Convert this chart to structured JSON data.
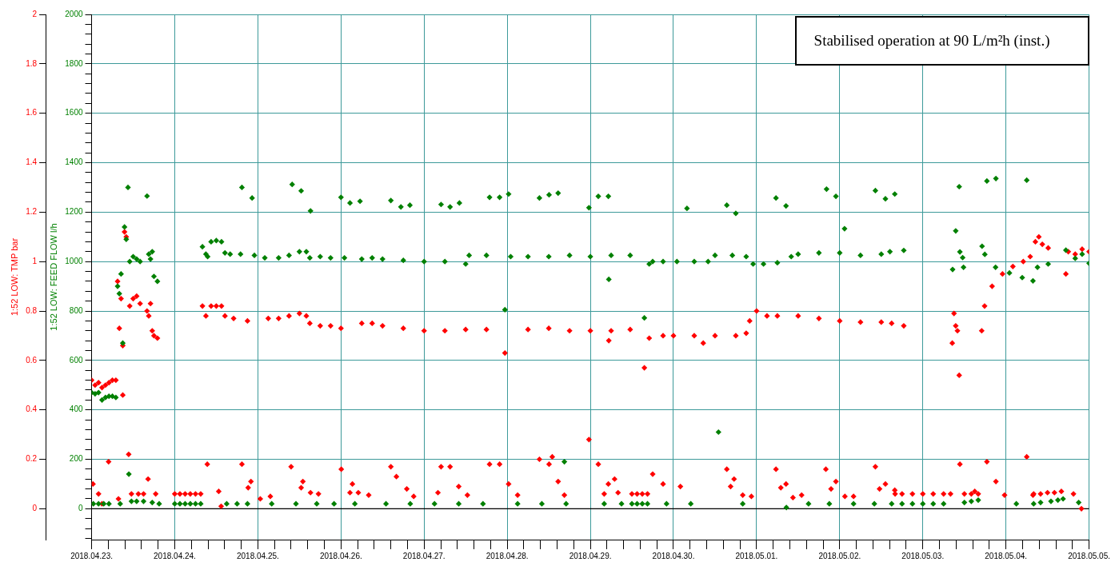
{
  "chart_data": {
    "type": "scatter",
    "ylabel": "1:52 LOW: FEED FLOW l/h",
    "y2label": "1:52 LOW: TMP bar",
    "annotations": [
      "Stabilised operation at 90 L/m²h (inst.)"
    ],
    "marker": "diamond",
    "grid": true,
    "legend": false,
    "xlim": [
      "2018-04-23",
      "2018-05-05"
    ],
    "xticks": [
      {
        "value": "2018-04-23",
        "label": "2018.04.23."
      },
      {
        "value": "2018-04-23T04:48",
        "label": null
      },
      {
        "value": "2018-04-23T09:36",
        "label": null
      },
      {
        "value": "2018-04-23T14:24",
        "label": null
      },
      {
        "value": "2018-04-23T19:12",
        "label": null
      },
      {
        "value": "2018-04-24",
        "label": "2018.04.24."
      },
      {
        "value": "2018-04-24T04:48",
        "label": null
      },
      {
        "value": "2018-04-24T09:36",
        "label": null
      },
      {
        "value": "2018-04-24T14:24",
        "label": null
      },
      {
        "value": "2018-04-24T19:12",
        "label": null
      },
      {
        "value": "2018-04-25",
        "label": "2018.04.25."
      },
      {
        "value": "2018-04-25T04:48",
        "label": null
      },
      {
        "value": "2018-04-25T09:36",
        "label": null
      },
      {
        "value": "2018-04-25T14:24",
        "label": null
      },
      {
        "value": "2018-04-25T19:12",
        "label": null
      },
      {
        "value": "2018-04-26",
        "label": "2018.04.26."
      },
      {
        "value": "2018-04-26T04:48",
        "label": null
      },
      {
        "value": "2018-04-26T09:36",
        "label": null
      },
      {
        "value": "2018-04-26T14:24",
        "label": null
      },
      {
        "value": "2018-04-26T19:12",
        "label": null
      },
      {
        "value": "2018-04-27",
        "label": "2018.04.27."
      },
      {
        "value": "2018-04-27T04:48",
        "label": null
      },
      {
        "value": "2018-04-27T09:36",
        "label": null
      },
      {
        "value": "2018-04-27T14:24",
        "label": null
      },
      {
        "value": "2018-04-27T19:12",
        "label": null
      },
      {
        "value": "2018-04-28",
        "label": "2018.04.28."
      },
      {
        "value": "2018-04-28T04:48",
        "label": null
      },
      {
        "value": "2018-04-28T09:36",
        "label": null
      },
      {
        "value": "2018-04-28T14:24",
        "label": null
      },
      {
        "value": "2018-04-28T19:12",
        "label": null
      },
      {
        "value": "2018-04-29",
        "label": "2018.04.29."
      },
      {
        "value": "2018-04-29T04:48",
        "label": null
      },
      {
        "value": "2018-04-29T09:36",
        "label": null
      },
      {
        "value": "2018-04-29T14:24",
        "label": null
      },
      {
        "value": "2018-04-29T19:12",
        "label": null
      },
      {
        "value": "2018-04-30",
        "label": "2018.04.30."
      },
      {
        "value": "2018-04-30T04:48",
        "label": null
      },
      {
        "value": "2018-04-30T09:36",
        "label": null
      },
      {
        "value": "2018-04-30T14:24",
        "label": null
      },
      {
        "value": "2018-04-30T19:12",
        "label": null
      },
      {
        "value": "2018-05-01",
        "label": "2018.05.01."
      },
      {
        "value": "2018-05-01T04:48",
        "label": null
      },
      {
        "value": "2018-05-01T09:36",
        "label": null
      },
      {
        "value": "2018-05-01T14:24",
        "label": null
      },
      {
        "value": "2018-05-01T19:12",
        "label": null
      },
      {
        "value": "2018-05-02",
        "label": "2018.05.02."
      },
      {
        "value": "2018-05-02T04:48",
        "label": null
      },
      {
        "value": "2018-05-02T09:36",
        "label": null
      },
      {
        "value": "2018-05-02T14:24",
        "label": null
      },
      {
        "value": "2018-05-02T19:12",
        "label": null
      },
      {
        "value": "2018-05-03",
        "label": "2018.05.03."
      },
      {
        "value": "2018-05-03T04:48",
        "label": null
      },
      {
        "value": "2018-05-03T09:36",
        "label": null
      },
      {
        "value": "2018-05-03T14:24",
        "label": null
      },
      {
        "value": "2018-05-03T19:12",
        "label": null
      },
      {
        "value": "2018-05-04",
        "label": "2018.05.04."
      },
      {
        "value": "2018-05-04T04:48",
        "label": null
      },
      {
        "value": "2018-05-04T09:36",
        "label": null
      },
      {
        "value": "2018-05-04T14:24",
        "label": null
      },
      {
        "value": "2018-05-04T19:12",
        "label": null
      },
      {
        "value": "2018-05-05",
        "label": "2018.05.05."
      }
    ],
    "ylim": [
      -125,
      2000
    ],
    "yticks": [
      {
        "value": -120,
        "label": null
      },
      {
        "value": -80,
        "label": null
      },
      {
        "value": -40,
        "label": null
      },
      0,
      {
        "value": 40,
        "label": null
      },
      {
        "value": 80,
        "label": null
      },
      {
        "value": 120,
        "label": null
      },
      {
        "value": 160,
        "label": null
      },
      200,
      {
        "value": 240,
        "label": null
      },
      {
        "value": 280,
        "label": null
      },
      {
        "value": 320,
        "label": null
      },
      {
        "value": 360,
        "label": null
      },
      400,
      {
        "value": 440,
        "label": null
      },
      {
        "value": 480,
        "label": null
      },
      {
        "value": 520,
        "label": null
      },
      {
        "value": 560,
        "label": null
      },
      600,
      {
        "value": 640,
        "label": null
      },
      {
        "value": 680,
        "label": null
      },
      {
        "value": 720,
        "label": null
      },
      {
        "value": 760,
        "label": null
      },
      800,
      {
        "value": 840,
        "label": null
      },
      {
        "value": 880,
        "label": null
      },
      {
        "value": 920,
        "label": null
      },
      {
        "value": 960,
        "label": null
      },
      1000,
      {
        "value": 1040,
        "label": null
      },
      {
        "value": 1080,
        "label": null
      },
      {
        "value": 1120,
        "label": null
      },
      {
        "value": 1160,
        "label": null
      },
      1200,
      {
        "value": 1240,
        "label": null
      },
      {
        "value": 1280,
        "label": null
      },
      {
        "value": 1320,
        "label": null
      },
      {
        "value": 1360,
        "label": null
      },
      1400,
      {
        "value": 1440,
        "label": null
      },
      {
        "value": 1480,
        "label": null
      },
      {
        "value": 1520,
        "label": null
      },
      {
        "value": 1560,
        "label": null
      },
      1600,
      {
        "value": 1640,
        "label": null
      },
      {
        "value": 1680,
        "label": null
      },
      {
        "value": 1720,
        "label": null
      },
      {
        "value": 1760,
        "label": null
      },
      1800,
      {
        "value": 1840,
        "label": null
      },
      {
        "value": 1880,
        "label": null
      },
      {
        "value": 1920,
        "label": null
      },
      {
        "value": 1960,
        "label": null
      },
      2000
    ],
    "y2lim": [
      -0.125,
      2
    ],
    "y2ticks": [
      0,
      0.2,
      0.4,
      0.6,
      0.8,
      1,
      1.2,
      1.4,
      1.6,
      1.8,
      2
    ],
    "ref_lines": [
      {
        "axis": "y",
        "value": 0,
        "color": "#000000"
      }
    ],
    "series": [
      {
        "color": "#008000",
        "x": [
          "2018-04-23T00:00",
          "2018-04-23T00:30",
          "2018-04-23T01:00",
          "2018-04-23T02:00",
          "2018-04-23T02:00",
          "2018-04-23T03:00",
          "2018-04-23T03:30",
          "2018-04-23T04:00",
          "2018-04-23T05:00",
          "2018-04-23T05:00",
          "2018-04-23T06:00",
          "2018-04-23T07:00",
          "2018-04-23T07:30",
          "2018-04-23T08:00",
          "2018-04-23T08:15",
          "2018-04-23T08:30",
          "2018-04-23T09:00",
          "2018-04-23T09:30",
          "2018-04-23T10:00",
          "2018-04-23T10:30",
          "2018-04-23T10:45",
          "2018-04-23T11:00",
          "2018-04-23T11:30",
          "2018-04-23T12:00",
          "2018-04-23T13:00",
          "2018-04-23T13:00",
          "2018-04-23T14:00",
          "2018-04-23T15:00",
          "2018-04-23T16:00",
          "2018-04-23T16:30",
          "2018-04-23T17:00",
          "2018-04-23T17:30",
          "2018-04-23T17:30",
          "2018-04-23T18:00",
          "2018-04-23T19:00",
          "2018-04-23T19:30",
          "2018-04-24T00:00",
          "2018-04-24T01:30",
          "2018-04-24T03:00",
          "2018-04-24T04:30",
          "2018-04-24T06:00",
          "2018-04-24T07:30",
          "2018-04-24T08:00",
          "2018-04-24T09:00",
          "2018-04-24T09:30",
          "2018-04-24T10:30",
          "2018-04-24T12:00",
          "2018-04-24T13:30",
          "2018-04-24T14:30",
          "2018-04-24T15:00",
          "2018-04-24T16:00",
          "2018-04-24T18:00",
          "2018-04-24T19:00",
          "2018-04-24T19:24",
          "2018-04-24T21:00",
          "2018-04-24T22:20",
          "2018-04-24T23:00",
          "2018-04-25T02:00",
          "2018-04-25T04:00",
          "2018-04-25T06:00",
          "2018-04-25T09:00",
          "2018-04-25T09:54",
          "2018-04-25T11:00",
          "2018-04-25T12:00",
          "2018-04-25T12:30",
          "2018-04-25T14:00",
          "2018-04-25T15:00",
          "2018-04-25T15:12",
          "2018-04-25T17:00",
          "2018-04-25T18:00",
          "2018-04-25T21:00",
          "2018-04-25T22:00",
          "2018-04-26T00:00",
          "2018-04-26T01:00",
          "2018-04-26T02:36",
          "2018-04-26T04:00",
          "2018-04-26T05:30",
          "2018-04-26T06:00",
          "2018-04-26T09:00",
          "2018-04-26T12:00",
          "2018-04-26T13:00",
          "2018-04-26T14:24",
          "2018-04-26T17:18",
          "2018-04-26T18:00",
          "2018-04-26T19:54",
          "2018-04-26T20:00",
          "2018-04-27T00:00",
          "2018-04-27T03:00",
          "2018-04-27T04:54",
          "2018-04-27T06:00",
          "2018-04-27T07:30",
          "2018-04-27T10:00",
          "2018-04-27T10:12",
          "2018-04-27T12:00",
          "2018-04-27T13:00",
          "2018-04-27T17:00",
          "2018-04-27T18:00",
          "2018-04-27T18:54",
          "2018-04-27T21:48",
          "2018-04-27T23:20",
          "2018-04-28T00:24",
          "2018-04-28T01:00",
          "2018-04-28T03:00",
          "2018-04-28T06:00",
          "2018-04-28T09:18",
          "2018-04-28T10:00",
          "2018-04-28T12:00",
          "2018-04-28T12:05",
          "2018-04-28T14:42",
          "2018-04-28T16:30",
          "2018-04-28T17:00",
          "2018-04-28T18:00",
          "2018-04-28T23:36",
          "2018-04-29T00:00",
          "2018-04-29T02:18",
          "2018-04-29T04:00",
          "2018-04-29T05:12",
          "2018-04-29T05:20",
          "2018-04-29T06:00",
          "2018-04-29T09:00",
          "2018-04-29T11:30",
          "2018-04-29T12:00",
          "2018-04-29T13:30",
          "2018-04-29T15:00",
          "2018-04-29T15:36",
          "2018-04-29T16:30",
          "2018-04-29T17:00",
          "2018-04-29T18:00",
          "2018-04-29T21:00",
          "2018-04-29T22:00",
          "2018-04-30T01:00",
          "2018-04-30T03:54",
          "2018-04-30T05:00",
          "2018-04-30T06:00",
          "2018-04-30T10:00",
          "2018-04-30T12:00",
          "2018-04-30T13:00",
          "2018-04-30T15:24",
          "2018-04-30T17:00",
          "2018-04-30T18:00",
          "2018-04-30T20:00",
          "2018-04-30T21:00",
          "2018-04-30T23:00",
          "2018-05-01T02:00",
          "2018-05-01T05:36",
          "2018-05-01T06:00",
          "2018-05-01T08:30",
          "2018-05-01T08:36",
          "2018-05-01T10:00",
          "2018-05-01T12:00",
          "2018-05-01T15:00",
          "2018-05-01T18:00",
          "2018-05-01T20:12",
          "2018-05-01T21:00",
          "2018-05-01T22:54",
          "2018-05-02T00:00",
          "2018-05-02T01:24",
          "2018-05-02T04:00",
          "2018-05-02T06:00",
          "2018-05-02T10:00",
          "2018-05-02T10:18",
          "2018-05-02T12:00",
          "2018-05-02T13:12",
          "2018-05-02T14:30",
          "2018-05-02T15:00",
          "2018-05-02T15:54",
          "2018-05-02T18:00",
          "2018-05-02T18:30",
          "2018-05-02T21:00",
          "2018-05-03T00:00",
          "2018-05-03T03:00",
          "2018-05-03T06:00",
          "2018-05-03T08:36",
          "2018-05-03T09:30",
          "2018-05-03T10:30",
          "2018-05-03T10:42",
          "2018-05-03T11:30",
          "2018-05-03T11:45",
          "2018-05-03T12:00",
          "2018-05-03T14:00",
          "2018-05-03T16:00",
          "2018-05-03T17:06",
          "2018-05-03T17:54",
          "2018-05-03T18:30",
          "2018-05-03T21:00",
          "2018-05-03T21:06",
          "2018-05-04T01:00",
          "2018-05-04T03:00",
          "2018-05-04T04:42",
          "2018-05-04T06:00",
          "2018-05-04T07:48",
          "2018-05-04T08:00",
          "2018-05-04T09:06",
          "2018-05-04T10:00",
          "2018-05-04T12:12",
          "2018-05-04T13:00",
          "2018-05-04T15:00",
          "2018-05-04T16:30",
          "2018-05-04T17:18",
          "2018-05-04T20:00",
          "2018-05-04T21:00",
          "2018-05-04T22:00",
          "2018-05-05T00:00"
        ],
        "values": [
          470,
          20,
          465,
          20,
          470,
          440,
          20,
          450,
          20,
          455,
          455,
          450,
          900,
          870,
          20,
          950,
          670,
          1140,
          1090,
          1300,
          140,
          1000,
          30,
          1020,
          1010,
          30,
          1000,
          30,
          1265,
          1030,
          1010,
          1040,
          25,
          940,
          920,
          20,
          20,
          20,
          20,
          20,
          20,
          20,
          1060,
          1030,
          1020,
          1080,
          1085,
          1080,
          1035,
          20,
          1030,
          20,
          1030,
          1300,
          20,
          1257,
          1025,
          1015,
          20,
          1015,
          1025,
          1312,
          20,
          1040,
          1286,
          1040,
          1015,
          1205,
          20,
          1020,
          1015,
          20,
          1260,
          1015,
          1237,
          20,
          1244,
          1010,
          1015,
          1010,
          20,
          1247,
          1221,
          1005,
          1228,
          20,
          1000,
          20,
          1231,
          1000,
          1221,
          20,
          1237,
          990,
          1025,
          20,
          1025,
          1260,
          1260,
          805,
          1273,
          1020,
          20,
          1020,
          1257,
          20,
          1020,
          1270,
          1277,
          190,
          20,
          1025,
          1218,
          1020,
          1264,
          20,
          1264,
          928,
          1025,
          20,
          1025,
          20,
          20,
          20,
          772,
          20,
          990,
          1000,
          1000,
          20,
          1000,
          1215,
          20,
          1000,
          1000,
          1025,
          310,
          1228,
          1025,
          1195,
          20,
          1020,
          990,
          990,
          1257,
          995,
          1225,
          5,
          1020,
          1030,
          20,
          1035,
          1293,
          20,
          1264,
          1035,
          1133,
          20,
          1025,
          20,
          1287,
          1030,
          1254,
          1040,
          20,
          1273,
          20,
          1045,
          20,
          20,
          20,
          20,
          968,
          1124,
          1303,
          1039,
          1016,
          977,
          25,
          30,
          35,
          1062,
          1029,
          1326,
          977,
          1336,
          954,
          20,
          935,
          1329,
          922,
          20,
          977,
          25,
          990,
          30,
          35,
          40,
          1046,
          1013,
          25,
          1030,
          993
        ]
      },
      {
        "color": "#ff0000",
        "axis": "y2",
        "x": [
          "2018-04-23T00:00",
          "2018-04-23T00:24",
          "2018-04-23T01:00",
          "2018-04-23T02:00",
          "2018-04-23T02:00",
          "2018-04-23T03:00",
          "2018-04-23T03:00",
          "2018-04-23T04:00",
          "2018-04-23T04:54",
          "2018-04-23T05:00",
          "2018-04-23T06:00",
          "2018-04-23T07:00",
          "2018-04-23T07:30",
          "2018-04-23T07:45",
          "2018-04-23T08:00",
          "2018-04-23T08:30",
          "2018-04-23T09:00",
          "2018-04-23T09:00",
          "2018-04-23T09:30",
          "2018-04-23T10:00",
          "2018-04-23T10:42",
          "2018-04-23T11:00",
          "2018-04-23T11:30",
          "2018-04-23T12:00",
          "2018-04-23T13:00",
          "2018-04-23T13:30",
          "2018-04-23T14:00",
          "2018-04-23T15:00",
          "2018-04-23T16:00",
          "2018-04-23T16:18",
          "2018-04-23T16:30",
          "2018-04-23T17:00",
          "2018-04-23T17:30",
          "2018-04-23T18:00",
          "2018-04-23T18:30",
          "2018-04-23T19:00",
          "2018-04-24T00:00",
          "2018-04-24T01:30",
          "2018-04-24T03:00",
          "2018-04-24T04:30",
          "2018-04-24T06:00",
          "2018-04-24T07:30",
          "2018-04-24T08:00",
          "2018-04-24T09:00",
          "2018-04-24T09:24",
          "2018-04-24T10:30",
          "2018-04-24T12:00",
          "2018-04-24T12:42",
          "2018-04-24T13:24",
          "2018-04-24T13:30",
          "2018-04-24T14:30",
          "2018-04-24T17:00",
          "2018-04-24T19:24",
          "2018-04-24T21:00",
          "2018-04-24T21:12",
          "2018-04-24T22:00",
          "2018-04-25T00:42",
          "2018-04-25T03:00",
          "2018-04-25T03:36",
          "2018-04-25T06:00",
          "2018-04-25T09:00",
          "2018-04-25T09:36",
          "2018-04-25T12:00",
          "2018-04-25T12:30",
          "2018-04-25T13:00",
          "2018-04-25T14:00",
          "2018-04-25T15:00",
          "2018-04-25T15:12",
          "2018-04-25T17:30",
          "2018-04-25T18:00",
          "2018-04-25T21:00",
          "2018-04-26T00:00",
          "2018-04-26T00:05",
          "2018-04-26T02:36",
          "2018-04-26T03:18",
          "2018-04-26T05:00",
          "2018-04-26T06:00",
          "2018-04-26T08:00",
          "2018-04-26T09:00",
          "2018-04-26T12:00",
          "2018-04-26T14:24",
          "2018-04-26T16:00",
          "2018-04-26T18:00",
          "2018-04-26T19:00",
          "2018-04-26T21:00",
          "2018-04-27T00:00",
          "2018-04-27T04:00",
          "2018-04-27T04:54",
          "2018-04-27T06:00",
          "2018-04-27T07:30",
          "2018-04-27T10:00",
          "2018-04-27T12:00",
          "2018-04-27T12:30",
          "2018-04-27T18:00",
          "2018-04-27T18:54",
          "2018-04-27T21:48",
          "2018-04-27T23:20",
          "2018-04-28T00:24",
          "2018-04-28T03:00",
          "2018-04-28T06:00",
          "2018-04-28T09:18",
          "2018-04-28T12:00",
          "2018-04-28T12:05",
          "2018-04-28T13:00",
          "2018-04-28T14:42",
          "2018-04-28T16:30",
          "2018-04-28T18:00",
          "2018-04-28T23:36",
          "2018-04-29T00:00",
          "2018-04-29T02:18",
          "2018-04-29T04:00",
          "2018-04-29T05:12",
          "2018-04-29T05:20",
          "2018-04-29T06:00",
          "2018-04-29T07:00",
          "2018-04-29T08:00",
          "2018-04-29T11:30",
          "2018-04-29T12:00",
          "2018-04-29T13:30",
          "2018-04-29T15:00",
          "2018-04-29T15:36",
          "2018-04-29T16:30",
          "2018-04-29T17:00",
          "2018-04-29T18:00",
          "2018-04-29T21:00",
          "2018-04-29T21:00",
          "2018-04-30T00:00",
          "2018-04-30T02:00",
          "2018-04-30T06:00",
          "2018-04-30T08:36",
          "2018-04-30T12:00",
          "2018-04-30T15:24",
          "2018-04-30T16:30",
          "2018-04-30T17:30",
          "2018-04-30T18:00",
          "2018-04-30T20:00",
          "2018-04-30T21:00",
          "2018-04-30T22:00",
          "2018-04-30T22:30",
          "2018-05-01T00:00",
          "2018-05-01T03:00",
          "2018-05-01T05:36",
          "2018-05-01T06:00",
          "2018-05-01T07:00",
          "2018-05-01T08:30",
          "2018-05-01T10:30",
          "2018-05-01T12:00",
          "2018-05-01T13:00",
          "2018-05-01T18:00",
          "2018-05-01T20:00",
          "2018-05-01T21:30",
          "2018-05-01T22:54",
          "2018-05-02T00:00",
          "2018-05-02T01:30",
          "2018-05-02T04:00",
          "2018-05-02T06:00",
          "2018-05-02T10:18",
          "2018-05-02T11:30",
          "2018-05-02T12:00",
          "2018-05-02T13:12",
          "2018-05-02T15:00",
          "2018-05-02T15:54",
          "2018-05-02T16:00",
          "2018-05-02T18:00",
          "2018-05-02T18:30",
          "2018-05-02T21:00",
          "2018-05-03T00:00",
          "2018-05-03T03:00",
          "2018-05-03T06:00",
          "2018-05-03T08:00",
          "2018-05-03T08:30",
          "2018-05-03T09:00",
          "2018-05-03T09:30",
          "2018-05-03T10:00",
          "2018-05-03T10:30",
          "2018-05-03T10:42",
          "2018-05-03T12:00",
          "2018-05-03T14:00",
          "2018-05-03T15:00",
          "2018-05-03T16:00",
          "2018-05-03T17:00",
          "2018-05-03T17:50",
          "2018-05-03T18:30",
          "2018-05-03T20:00",
          "2018-05-03T21:06",
          "2018-05-03T23:00",
          "2018-05-03T23:36",
          "2018-05-04T02:00",
          "2018-05-04T05:00",
          "2018-05-04T06:00",
          "2018-05-04T07:00",
          "2018-05-04T07:48",
          "2018-05-04T08:00",
          "2018-05-04T08:30",
          "2018-05-04T09:30",
          "2018-05-04T10:00",
          "2018-05-04T10:30",
          "2018-05-04T12:00",
          "2018-05-04T12:12",
          "2018-05-04T14:00",
          "2018-05-04T16:00",
          "2018-05-04T17:18",
          "2018-05-04T18:00",
          "2018-05-04T19:30",
          "2018-05-04T20:00",
          "2018-05-04T21:48",
          "2018-05-04T22:00",
          "2018-05-05T00:00"
        ],
        "values": [
          0.52,
          0.1,
          0.5,
          0.06,
          0.51,
          0.02,
          0.49,
          0.5,
          0.19,
          0.51,
          0.52,
          0.52,
          0.92,
          0.04,
          0.73,
          0.85,
          0.66,
          0.46,
          1.12,
          1.1,
          0.22,
          0.82,
          0.06,
          0.85,
          0.86,
          0.06,
          0.83,
          0.06,
          0.8,
          0.12,
          0.78,
          0.83,
          0.72,
          0.7,
          0.06,
          0.69,
          0.06,
          0.06,
          0.06,
          0.06,
          0.06,
          0.06,
          0.82,
          0.78,
          0.18,
          0.82,
          0.82,
          0.07,
          0.01,
          0.82,
          0.78,
          0.77,
          0.18,
          0.76,
          0.085,
          0.11,
          0.04,
          0.77,
          0.05,
          0.77,
          0.78,
          0.17,
          0.79,
          0.085,
          0.11,
          0.78,
          0.75,
          0.065,
          0.06,
          0.74,
          0.74,
          0.73,
          0.16,
          0.065,
          0.1,
          0.065,
          0.75,
          0.055,
          0.75,
          0.74,
          0.17,
          0.13,
          0.73,
          0.08,
          0.05,
          0.72,
          0.065,
          0.17,
          0.72,
          0.17,
          0.09,
          0.725,
          0.055,
          0.725,
          0.18,
          0.18,
          0.63,
          0.1,
          0.055,
          0.725,
          0.2,
          0.73,
          0.18,
          0.21,
          0.11,
          0.055,
          0.72,
          0.28,
          0.72,
          0.18,
          0.06,
          0.1,
          0.68,
          0.72,
          0.12,
          0.065,
          0.725,
          0.06,
          0.06,
          0.06,
          0.57,
          0.06,
          0.69,
          0.14,
          0.7,
          0.1,
          0.7,
          0.09,
          0.7,
          0.67,
          0.7,
          0.16,
          0.09,
          0.12,
          0.7,
          0.055,
          0.71,
          0.76,
          0.05,
          0.8,
          0.78,
          0.16,
          0.78,
          0.085,
          0.1,
          0.045,
          0.78,
          0.055,
          0.77,
          0.16,
          0.08,
          0.11,
          0.76,
          0.05,
          0.05,
          0.755,
          0.17,
          0.08,
          0.755,
          0.1,
          0.75,
          0.075,
          0.06,
          0.06,
          0.74,
          0.06,
          0.06,
          0.06,
          0.06,
          0.06,
          0.67,
          0.79,
          0.74,
          0.72,
          0.54,
          0.18,
          0.06,
          0.06,
          0.07,
          0.06,
          0.72,
          0.82,
          0.19,
          0.9,
          0.11,
          0.95,
          0.055,
          0.98,
          1,
          0.21,
          1.02,
          0.055,
          0.06,
          1.08,
          1.1,
          0.06,
          1.07,
          0.065,
          1.055,
          0.065,
          0.07,
          0.95,
          1.04,
          0.06,
          1.03,
          0,
          1.05,
          1.04
        ]
      }
    ]
  }
}
